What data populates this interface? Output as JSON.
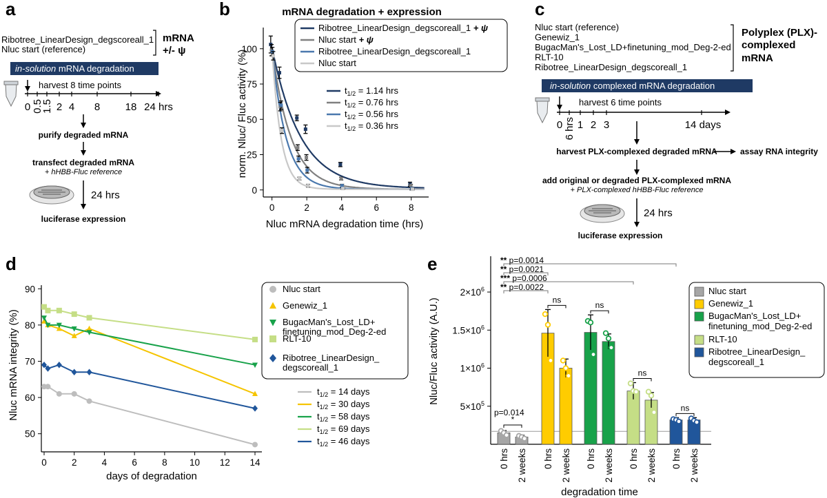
{
  "panel_a": {
    "label": "a",
    "constructs": [
      "Ribotree_LinearDesign_degscoreall_1",
      "Nluc start (reference)"
    ],
    "mrna_label": "mRNA",
    "psi_label": "+/- ψ",
    "banner_italic": "in-solution",
    "banner_rest": " mRNA degradation",
    "harvest": "harvest 8 time points",
    "time_points": [
      "0",
      "0.5",
      "1.5",
      "2",
      "4",
      "8",
      "18",
      "24 hrs"
    ],
    "hrs_label": "",
    "step1": "purify degraded mRNA",
    "step2": "transfect degraded mRNA",
    "step2_sub": "+ hHBB-Fluc reference",
    "hours24": "24 hrs",
    "step3": "luciferase expression"
  },
  "panel_c": {
    "label": "c",
    "constructs": [
      "Nluc start (reference)",
      "Genewiz_1",
      "BugacMan's_Lost_LD+finetuning_mod_Deg-2-ed",
      "RLT-10",
      "Ribotree_LinearDesign_degscoreall_1"
    ],
    "plx_label": [
      "Polyplex (PLX)-",
      "complexed",
      "mRNA"
    ],
    "banner_italic": "in-solution",
    "banner_rest": " complexed mRNA degradation",
    "harvest": "harvest 6 time points",
    "time_points": [
      "0",
      "6 hrs",
      "1",
      "2",
      "3",
      "14 days"
    ],
    "step1": "harvest PLX-complexed degraded mRNA",
    "step_integrity": "assay RNA integrity",
    "step2": "add original or degraded PLX-complexed mRNA",
    "step2_sub": "+ PLX-complexed hHBB-Fluc reference",
    "hours24": "24 hrs",
    "step3": "luciferase expression"
  },
  "chart_data": [
    {
      "panel": "b",
      "type": "line",
      "title": "mRNA degradation + expression",
      "xlabel": "Nluc mRNA degradation time (hrs)",
      "ylabel": "norm. Nluc/ Fluc activity (%)",
      "xlim": [
        -0.5,
        9
      ],
      "ylim": [
        -5,
        115
      ],
      "xticks": [
        0,
        2,
        4,
        6,
        8
      ],
      "yticks": [
        0,
        25,
        50,
        75,
        100
      ],
      "series": [
        {
          "name": "Ribotree_LinearDesign_degscoreall_1",
          "suffix": " + ψ",
          "color": "#1f3a64",
          "halflife": "1.14 hrs",
          "k": 0.608,
          "x": [
            0,
            0.5,
            1.5,
            2,
            4,
            8
          ],
          "y": [
            103,
            83,
            51,
            43,
            18,
            4
          ],
          "err": [
            6,
            4,
            2,
            3,
            1.5,
            1.5
          ]
        },
        {
          "name": "Nluc start",
          "suffix": " + ψ",
          "color": "#808080",
          "halflife": "0.76 hrs",
          "k": 0.912,
          "x": [
            0,
            0.5,
            1.5,
            2,
            4,
            8
          ],
          "y": [
            99,
            59,
            30,
            23,
            8,
            3
          ],
          "err": [
            4,
            3,
            2,
            2,
            1,
            1
          ]
        },
        {
          "name": "Ribotree_LinearDesign_degscoreall_1",
          "suffix": "",
          "color": "#4a78ad",
          "halflife": "0.56 hrs",
          "k": 1.238,
          "x": [
            0,
            0.5,
            1.5,
            2,
            4,
            8
          ],
          "y": [
            98,
            60,
            22,
            14,
            3,
            1
          ],
          "err": [
            3,
            3,
            2,
            2,
            1,
            1
          ]
        },
        {
          "name": "Nluc start",
          "suffix": "",
          "color": "#c8c8c8",
          "halflife": "0.36 hrs",
          "k": 1.925,
          "x": [
            0,
            0.5,
            1.5,
            2,
            4,
            8
          ],
          "y": [
            95,
            42,
            8,
            3,
            1,
            0.5
          ],
          "err": [
            3,
            2,
            1,
            1,
            0.5,
            0.5
          ]
        }
      ],
      "halflife_symbol": "t",
      "halflife_sub": "1/2"
    },
    {
      "panel": "d",
      "type": "line",
      "xlabel": "days of degradation",
      "ylabel": "Nluc mRNA integrity (%)",
      "xlim": [
        0,
        14.5
      ],
      "ylim": [
        45,
        91
      ],
      "xticks": [
        0,
        2,
        4,
        6,
        8,
        10,
        12,
        14
      ],
      "yticks": [
        50,
        60,
        70,
        80,
        90
      ],
      "series": [
        {
          "name": "Nluc start",
          "color": "#bdbdbd",
          "marker": "circle",
          "halflife": "14 days",
          "x": [
            0,
            0.25,
            1,
            2,
            3,
            14
          ],
          "y": [
            63,
            63,
            61,
            61,
            59,
            47
          ]
        },
        {
          "name": "Genewiz_1",
          "color": "#f5c400",
          "marker": "triangle-up",
          "halflife": "30 days",
          "x": [
            0,
            0.25,
            1,
            2,
            3,
            14
          ],
          "y": [
            81,
            80,
            79,
            77,
            79,
            61
          ]
        },
        {
          "name": "BugacMan's_Lost_LD+ finetuning_mod_Deg-2-ed",
          "color": "#18a24a",
          "marker": "triangle-down",
          "halflife": "58 days",
          "x": [
            0,
            0.25,
            1,
            2,
            3,
            14
          ],
          "y": [
            82,
            80,
            80,
            79,
            78,
            69
          ]
        },
        {
          "name": "RLT-10",
          "color": "#c5de86",
          "marker": "square",
          "halflife": "69 days",
          "x": [
            0,
            0.25,
            1,
            2,
            3,
            14
          ],
          "y": [
            85,
            84,
            84,
            83,
            82,
            76
          ]
        },
        {
          "name": "Ribotree_LinearDesign_ degscoreall_1",
          "color": "#20569b",
          "marker": "diamond",
          "halflife": "46 days",
          "x": [
            0,
            0.25,
            1,
            2,
            3,
            14
          ],
          "y": [
            69,
            68,
            69,
            67,
            67,
            57
          ]
        }
      ]
    },
    {
      "panel": "e",
      "type": "bar",
      "xlabel": "degradation time",
      "ylabel": "Nluc/Fluc activity (A.U.)",
      "ylim": [
        0,
        2000000
      ],
      "yticks": [
        {
          "value": 500000,
          "mant": "5×10",
          "exp": "5"
        },
        {
          "value": 1000000,
          "mant": "1×10",
          "exp": "6"
        },
        {
          "value": 1500000,
          "mant": "1.5×10",
          "exp": "6"
        },
        {
          "value": 2000000,
          "mant": "2×10",
          "exp": "6"
        }
      ],
      "reference_line": 170000,
      "categories": [
        "0 hrs",
        "2 weeks"
      ],
      "groups": [
        {
          "name": "Nluc start",
          "color": "#a6a6a6",
          "values": [
            150000,
            95000
          ],
          "err": [
            30000,
            25000
          ],
          "points": [
            [
              175000,
              150000,
              120000
            ],
            [
              110000,
              95000,
              75000
            ]
          ],
          "sig": "*",
          "sig_p": "p=0.014"
        },
        {
          "name": "Genewiz_1",
          "color": "#ffcc00",
          "values": [
            1460000,
            1000000
          ],
          "err": [
            310000,
            120000
          ],
          "points": [
            [
              1710000,
              1570000,
              1100000
            ],
            [
              1100000,
              1000000,
              900000
            ]
          ],
          "sig": "ns"
        },
        {
          "name": "BugacMan's_Lost_LD+ finetuning_mod_Deg-2-ed",
          "color": "#18a24a",
          "values": [
            1470000,
            1350000
          ],
          "err": [
            230000,
            100000
          ],
          "points": [
            [
              1620000,
              1600000,
              1180000
            ],
            [
              1460000,
              1390000,
              1270000
            ]
          ],
          "sig": "ns"
        },
        {
          "name": "RLT-10",
          "color": "#c5de86",
          "values": [
            700000,
            580000
          ],
          "err": [
            110000,
            100000
          ],
          "points": [
            [
              800000,
              700000,
              690000
            ],
            [
              690000,
              640000,
              420000
            ]
          ],
          "sig": "ns"
        },
        {
          "name": "Ribotree_LinearDesign_ degscoreall_1",
          "color": "#20569b",
          "values": [
            320000,
            320000
          ],
          "err": [
            30000,
            30000
          ],
          "points": [
            [
              330000,
              320000,
              300000
            ],
            [
              340000,
              310000,
              290000
            ]
          ],
          "sig": "ns"
        }
      ],
      "comparisons": [
        {
          "stars": "**",
          "p": "p=0.0014",
          "to_group": 4
        },
        {
          "stars": "**",
          "p": "p=0.0021",
          "to_group": 1
        },
        {
          "stars": "***",
          "p": "p=0.0006",
          "to_group": 3
        },
        {
          "stars": "**",
          "p": "p=0.0022",
          "to_group": 1
        }
      ]
    }
  ]
}
